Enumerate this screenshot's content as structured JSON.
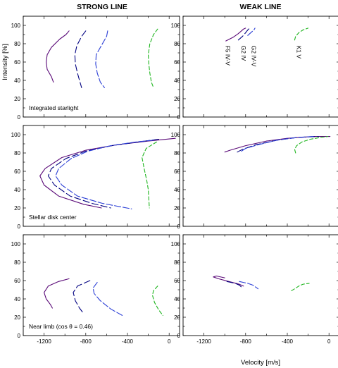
{
  "figure": {
    "col_titles": [
      "STRONG LINE",
      "WEAK LINE"
    ],
    "ylabel": "Intensity  [%]",
    "xlabel": "Velocity  [m/s]"
  },
  "colors": {
    "F5 IV-V": "#5a0a78",
    "G2 IV": "#000080",
    "G2 IV-V": "#2a3ed6",
    "K1 V": "#1db51d"
  },
  "chart_data": [
    {
      "type": "line",
      "row": 0,
      "col": 0,
      "annotation": "Integrated starlight",
      "xlim": [
        -1400,
        100
      ],
      "ylim": [
        0,
        110
      ],
      "xticks": [
        -1200,
        -800,
        -400,
        0
      ],
      "yticks": [
        0,
        20,
        40,
        60,
        80,
        100
      ],
      "xtick_labels": false,
      "series": [
        {
          "key": "F5 IV-V",
          "dash": "",
          "x": [
            -960,
            -990,
            -1050,
            -1130,
            -1170,
            -1180,
            -1170,
            -1130,
            -1110
          ],
          "y": [
            94,
            90,
            85,
            76,
            68,
            60,
            52,
            44,
            38
          ]
        },
        {
          "key": "G2 IV",
          "dash": "9,4",
          "x": [
            -800,
            -840,
            -885,
            -905,
            -900,
            -880,
            -860,
            -840
          ],
          "y": [
            94,
            88,
            78,
            68,
            58,
            48,
            40,
            32
          ]
        },
        {
          "key": "G2 IV-V",
          "dash": "9,3",
          "x": [
            -590,
            -600,
            -650,
            -700,
            -705,
            -690,
            -660,
            -620
          ],
          "y": [
            94,
            88,
            78,
            68,
            58,
            48,
            38,
            32
          ]
        },
        {
          "key": "K1 V",
          "dash": "5,3",
          "x": [
            -110,
            -150,
            -185,
            -200,
            -195,
            -185,
            -170,
            -150
          ],
          "y": [
            96,
            90,
            80,
            68,
            58,
            48,
            38,
            32
          ]
        }
      ]
    },
    {
      "type": "line",
      "row": 0,
      "col": 1,
      "annotation": "",
      "xlim": [
        -1400,
        100
      ],
      "ylim": [
        0,
        110
      ],
      "xticks": [
        -1200,
        -800,
        -400,
        0
      ],
      "yticks": [
        0,
        20,
        40,
        60,
        80,
        100
      ],
      "xtick_labels": false,
      "labels": [
        {
          "text": "F5 IV-V",
          "x": -1010,
          "y": 78
        },
        {
          "text": "G2 IV",
          "x": -860,
          "y": 78
        },
        {
          "text": "G2 IV-V",
          "x": -760,
          "y": 78
        },
        {
          "text": "K1 V",
          "x": -330,
          "y": 78
        }
      ],
      "series": [
        {
          "key": "F5 IV-V",
          "dash": "",
          "x": [
            -990,
            -920,
            -870,
            -840,
            -820,
            -800
          ],
          "y": [
            83,
            87,
            91,
            94,
            96,
            97
          ]
        },
        {
          "key": "G2 IV",
          "dash": "9,4",
          "x": [
            -870,
            -830,
            -800,
            -780,
            -760
          ],
          "y": [
            84,
            88,
            92,
            95,
            97
          ]
        },
        {
          "key": "G2 IV-V",
          "dash": "9,3",
          "x": [
            -780,
            -760,
            -740,
            -720,
            -710
          ],
          "y": [
            89,
            91,
            93,
            95,
            97
          ]
        },
        {
          "key": "K1 V",
          "dash": "5,3",
          "x": [
            -330,
            -320,
            -290,
            -250,
            -200
          ],
          "y": [
            84,
            88,
            92,
            95,
            97
          ]
        }
      ]
    },
    {
      "type": "line",
      "row": 1,
      "col": 0,
      "annotation": "Stellar disk center",
      "xlim": [
        -1400,
        100
      ],
      "ylim": [
        0,
        110
      ],
      "xticks": [
        -1200,
        -800,
        -400,
        0
      ],
      "yticks": [
        0,
        20,
        40,
        60,
        80,
        100
      ],
      "xtick_labels": false,
      "series": [
        {
          "key": "F5 IV-V",
          "dash": "",
          "x": [
            60,
            -200,
            -500,
            -800,
            -1030,
            -1190,
            -1240,
            -1200,
            -1060,
            -820,
            -650
          ],
          "y": [
            96,
            93,
            89,
            83,
            75,
            63,
            55,
            45,
            33,
            24,
            20
          ]
        },
        {
          "key": "G2 IV",
          "dash": "9,4",
          "x": [
            -100,
            -300,
            -550,
            -800,
            -990,
            -1130,
            -1160,
            -1100,
            -950,
            -740,
            -560
          ],
          "y": [
            95,
            92,
            88,
            82,
            74,
            63,
            55,
            45,
            33,
            25,
            20
          ]
        },
        {
          "key": "G2 IV-V",
          "dash": "9,3",
          "x": [
            -150,
            -320,
            -560,
            -780,
            -940,
            -1060,
            -1090,
            -1030,
            -880,
            -640,
            -360
          ],
          "y": [
            94,
            92,
            88,
            82,
            74,
            63,
            55,
            45,
            33,
            25,
            19
          ]
        },
        {
          "key": "K1 V",
          "dash": "5,3",
          "x": [
            -120,
            -220,
            -260,
            -240,
            -215,
            -200,
            -195,
            -190
          ],
          "y": [
            92,
            85,
            75,
            63,
            50,
            40,
            30,
            20
          ]
        }
      ]
    },
    {
      "type": "line",
      "row": 1,
      "col": 1,
      "annotation": "",
      "xlim": [
        -1400,
        100
      ],
      "ylim": [
        0,
        110
      ],
      "xticks": [
        -1200,
        -800,
        -400,
        0
      ],
      "yticks": [
        0,
        20,
        40,
        60,
        80,
        100
      ],
      "xtick_labels": false,
      "series": [
        {
          "key": "F5 IV-V",
          "dash": "",
          "x": [
            -1000,
            -950,
            -800,
            -600,
            -400,
            -150,
            10
          ],
          "y": [
            81,
            83,
            88,
            93,
            96,
            98,
            98
          ]
        },
        {
          "key": "G2 IV",
          "dash": "9,4",
          "x": [
            -880,
            -830,
            -700,
            -500,
            -300,
            -100
          ],
          "y": [
            81,
            84,
            89,
            94,
            97,
            98
          ]
        },
        {
          "key": "G2 IV-V",
          "dash": "9,3",
          "x": [
            -840,
            -800,
            -680,
            -500,
            -300,
            -150
          ],
          "y": [
            82,
            85,
            89,
            94,
            97,
            98
          ]
        },
        {
          "key": "K1 V",
          "dash": "5,3",
          "x": [
            -320,
            -330,
            -310,
            -260,
            -180,
            -80,
            -10
          ],
          "y": [
            80,
            84,
            88,
            92,
            95,
            97,
            98
          ]
        }
      ]
    },
    {
      "type": "line",
      "row": 2,
      "col": 0,
      "annotation": "Near limb (cos θ = 0.46)",
      "xlim": [
        -1400,
        100
      ],
      "ylim": [
        0,
        110
      ],
      "xticks": [
        -1200,
        -800,
        -400,
        0
      ],
      "yticks": [
        0,
        20,
        40,
        60,
        80,
        100
      ],
      "xtick_labels": true,
      "series": [
        {
          "key": "F5 IV-V",
          "dash": "",
          "x": [
            -960,
            -1060,
            -1160,
            -1200,
            -1180,
            -1140,
            -1120
          ],
          "y": [
            62,
            59,
            54,
            47,
            40,
            34,
            30
          ]
        },
        {
          "key": "G2 IV",
          "dash": "9,4",
          "x": [
            -760,
            -880,
            -920,
            -900,
            -860,
            -820
          ],
          "y": [
            60,
            54,
            47,
            38,
            30,
            24
          ]
        },
        {
          "key": "G2 IV-V",
          "dash": "9,3",
          "x": [
            -690,
            -730,
            -720,
            -660,
            -560,
            -450
          ],
          "y": [
            58,
            52,
            46,
            38,
            29,
            22
          ]
        },
        {
          "key": "K1 V",
          "dash": "5,3",
          "x": [
            -110,
            -150,
            -160,
            -140,
            -100,
            -60
          ],
          "y": [
            54,
            49,
            44,
            36,
            28,
            22
          ]
        }
      ]
    },
    {
      "type": "line",
      "row": 2,
      "col": 1,
      "annotation": "",
      "xlim": [
        -1400,
        100
      ],
      "ylim": [
        0,
        110
      ],
      "xticks": [
        -1200,
        -800,
        -400,
        0
      ],
      "yticks": [
        0,
        20,
        40,
        60,
        80,
        100
      ],
      "xtick_labels": true,
      "series": [
        {
          "key": "F5 IV-V",
          "dash": "",
          "x": [
            -1000,
            -1080,
            -1110,
            -1060,
            -960,
            -860,
            -820
          ],
          "y": [
            63,
            65,
            64,
            62,
            59,
            56,
            54
          ]
        },
        {
          "key": "G2 IV",
          "dash": "9,4",
          "x": [
            -980,
            -900,
            -860,
            -840,
            -830
          ],
          "y": [
            59,
            57,
            55,
            53,
            51
          ]
        },
        {
          "key": "G2 IV-V",
          "dash": "9,3",
          "x": [
            -860,
            -820,
            -780,
            -730,
            -680
          ],
          "y": [
            59,
            58,
            57,
            55,
            51
          ]
        },
        {
          "key": "K1 V",
          "dash": "5,3",
          "x": [
            -360,
            -330,
            -290,
            -250,
            -190
          ],
          "y": [
            49,
            51,
            54,
            56,
            57
          ]
        }
      ]
    }
  ]
}
